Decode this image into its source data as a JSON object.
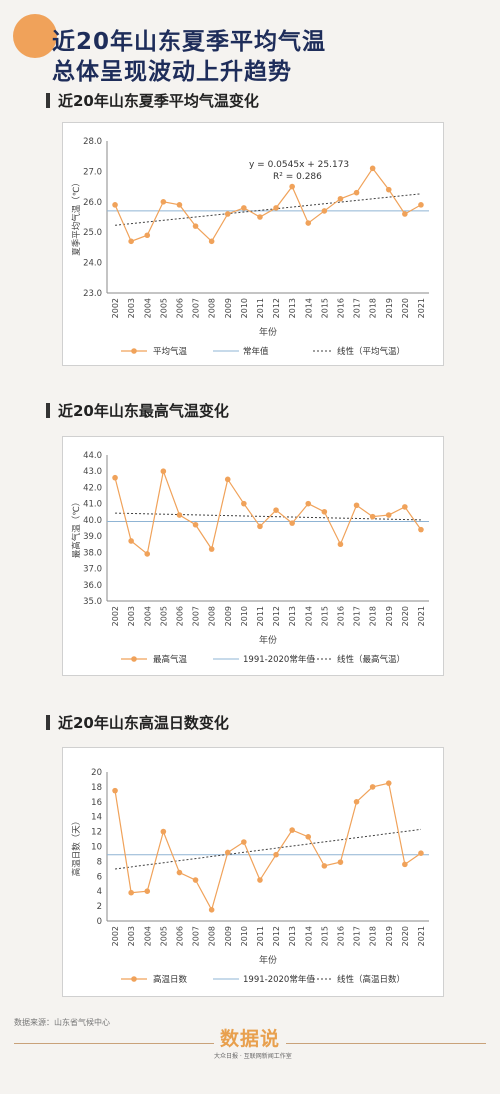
{
  "header": {
    "line1": "近20年山东夏季平均气温",
    "line2": "总体呈现波动上升趋势"
  },
  "footer": {
    "source": "数据来源：山东省气候中心",
    "logo_main": "数据说",
    "logo_sub": "大众日报 · 互联网新闻工作室"
  },
  "colors": {
    "series": "#f0a25a",
    "normal": "#8fb4d4",
    "trend": "#404040"
  },
  "chart_data": [
    {
      "type": "line",
      "section_title": "近20年山东夏季平均气温变化",
      "x": [
        "2002",
        "2003",
        "2004",
        "2005",
        "2006",
        "2007",
        "2008",
        "2009",
        "2010",
        "2011",
        "2012",
        "2013",
        "2014",
        "2015",
        "2016",
        "2017",
        "2018",
        "2019",
        "2020",
        "2021"
      ],
      "series": [
        {
          "name": "平均气温",
          "values": [
            25.9,
            24.7,
            24.9,
            26.0,
            25.9,
            25.2,
            24.7,
            25.6,
            25.8,
            25.5,
            25.8,
            26.5,
            25.3,
            25.7,
            26.1,
            26.3,
            27.1,
            26.4,
            25.6,
            25.9
          ]
        }
      ],
      "normal_value": 25.7,
      "trend": {
        "slope": 0.0545,
        "intercept": 25.173
      },
      "equation": "y = 0.0545x + 25.173",
      "r2": "R² = 0.286",
      "ylabel": "夏季平均气温（℃）",
      "xlabel": "年份",
      "ylim": [
        23.0,
        28.0
      ],
      "yticks": [
        "23.0",
        "24.0",
        "25.0",
        "26.0",
        "27.0",
        "28.0"
      ],
      "legend": [
        "平均气温",
        "常年值",
        "线性（平均气温）"
      ],
      "legend_position": "bottom",
      "grid": false
    },
    {
      "type": "line",
      "section_title": "近20年山东最高气温变化",
      "x": [
        "2002",
        "2003",
        "2004",
        "2005",
        "2006",
        "2007",
        "2008",
        "2009",
        "2010",
        "2011",
        "2012",
        "2013",
        "2014",
        "2015",
        "2016",
        "2017",
        "2018",
        "2019",
        "2020",
        "2021"
      ],
      "series": [
        {
          "name": "最高气温",
          "values": [
            42.6,
            38.7,
            37.9,
            43.0,
            40.3,
            39.7,
            38.2,
            42.5,
            41.0,
            39.6,
            40.6,
            39.8,
            41.0,
            40.5,
            38.5,
            40.9,
            40.2,
            40.3,
            40.8,
            39.4
          ]
        }
      ],
      "normal_value": 39.9,
      "trend": {
        "slope": -0.022,
        "intercept": 40.44
      },
      "ylabel": "最高气温（℃）",
      "xlabel": "年份",
      "ylim": [
        35.0,
        44.0
      ],
      "yticks": [
        "35.0",
        "36.0",
        "37.0",
        "38.0",
        "39.0",
        "40.0",
        "41.0",
        "42.0",
        "43.0",
        "44.0"
      ],
      "legend": [
        "最高气温",
        "1991-2020常年值",
        "线性（最高气温）"
      ],
      "legend_position": "bottom",
      "grid": false
    },
    {
      "type": "line",
      "section_title": "近20年山东高温日数变化",
      "x": [
        "2002",
        "2003",
        "2004",
        "2005",
        "2006",
        "2007",
        "2008",
        "2009",
        "2010",
        "2011",
        "2012",
        "2013",
        "2014",
        "2015",
        "2016",
        "2017",
        "2018",
        "2019",
        "2020",
        "2021"
      ],
      "series": [
        {
          "name": "高温日数",
          "values": [
            17.5,
            3.8,
            4.0,
            12.0,
            6.5,
            5.5,
            1.5,
            9.2,
            10.6,
            5.5,
            8.9,
            12.2,
            11.3,
            7.4,
            7.9,
            16.0,
            18.0,
            18.5,
            7.6,
            9.1
          ]
        }
      ],
      "normal_value": 8.9,
      "trend": {
        "slope": 0.28,
        "intercept": 6.7
      },
      "ylabel": "高温日数（天）",
      "xlabel": "年份",
      "ylim": [
        0,
        20
      ],
      "yticks": [
        "0",
        "2",
        "4",
        "6",
        "8",
        "10",
        "12",
        "14",
        "16",
        "18",
        "20"
      ],
      "legend": [
        "高温日数",
        "1991-2020常年值",
        "线性（高温日数）"
      ],
      "legend_position": "bottom",
      "grid": false
    }
  ]
}
